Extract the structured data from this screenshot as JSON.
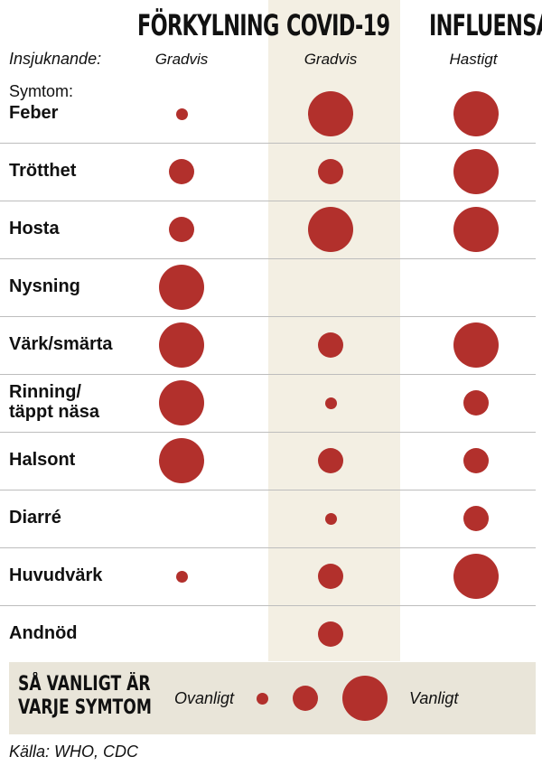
{
  "columns": [
    {
      "label": "FÖRKYLNING",
      "onset": "Gradvis"
    },
    {
      "label": "COVID-19",
      "onset": "Gradvis"
    },
    {
      "label": "INFLUENSA",
      "onset": "Hastigt"
    }
  ],
  "onset_label": "Insjuknande:",
  "symptom_heading": "Symtom:",
  "rows": [
    {
      "label": "Feber",
      "levels": [
        1,
        3,
        3
      ]
    },
    {
      "label": "Trötthet",
      "levels": [
        2,
        2,
        3
      ]
    },
    {
      "label": "Hosta",
      "levels": [
        2,
        3,
        3
      ]
    },
    {
      "label": "Nysning",
      "levels": [
        3,
        0,
        0
      ]
    },
    {
      "label": "Värk/smärta",
      "levels": [
        3,
        2,
        3
      ]
    },
    {
      "label": "Rinning/\ntäppt näsa",
      "levels": [
        3,
        1,
        2
      ]
    },
    {
      "label": "Halsont",
      "levels": [
        3,
        2,
        2
      ]
    },
    {
      "label": "Diarré",
      "levels": [
        0,
        1,
        2
      ]
    },
    {
      "label": "Huvudvärk",
      "levels": [
        1,
        2,
        3
      ]
    },
    {
      "label": "Andnöd",
      "levels": [
        0,
        2,
        0
      ]
    }
  ],
  "legend": {
    "title_line1": "SÅ VANLIGT ÄR",
    "title_line2": "VARJE SYMTOM",
    "low_label": "Ovanligt",
    "high_label": "Vanligt",
    "levels": [
      1,
      2,
      3
    ]
  },
  "source": "Källa: WHO, CDC",
  "colors": {
    "dot": "#b2302c",
    "covid_band": "#f3efe3",
    "legend_bg": "#e9e5d9"
  }
}
